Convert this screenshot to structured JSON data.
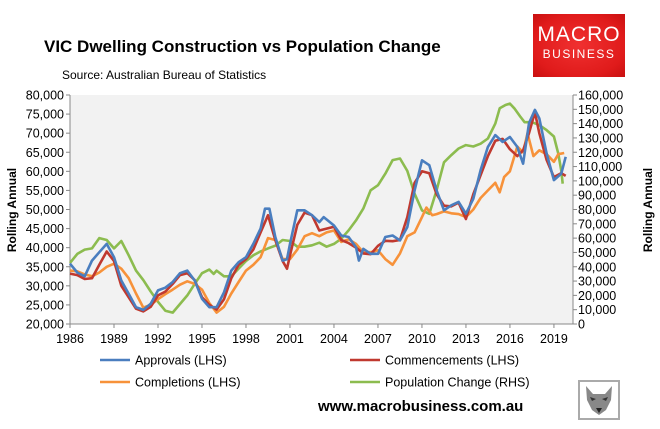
{
  "title": "VIC Dwelling Construction vs Population Change",
  "source": "Source: Australian Bureau of Statistics",
  "logo": {
    "line1": "MACRO",
    "line2": "BUSINESS",
    "color": "#e01b1b"
  },
  "footer": "www.macrobusiness.com.au",
  "chart_data": {
    "type": "line",
    "title": "VIC Dwelling Construction vs Population Change",
    "xlabel": "",
    "ylabel_left": "Rolling Annual",
    "ylabel_right": "Rolling Annual",
    "xlim": [
      1986,
      2020.3
    ],
    "ylim_left": [
      20000,
      80000
    ],
    "ylim_right": [
      0,
      160000
    ],
    "x_ticks": [
      "1986",
      "1989",
      "1992",
      "1995",
      "1998",
      "2001",
      "2004",
      "2007",
      "2010",
      "2013",
      "2016",
      "2019"
    ],
    "y_ticks_left": [
      "20,000",
      "25,000",
      "30,000",
      "35,000",
      "40,000",
      "45,000",
      "50,000",
      "55,000",
      "60,000",
      "65,000",
      "70,000",
      "75,000",
      "80,000"
    ],
    "y_ticks_right": [
      "0",
      "10,000",
      "20,000",
      "30,000",
      "40,000",
      "50,000",
      "60,000",
      "70,000",
      "80,000",
      "90,000",
      "100,000",
      "110,000",
      "120,000",
      "130,000",
      "140,000",
      "150,000",
      "160,000"
    ],
    "grid": false,
    "legend_position": "bottom",
    "series": [
      {
        "name": "Approvals (LHS)",
        "axis": "left",
        "color": "#4a7ebf",
        "x": [
          1986,
          1986.5,
          1987,
          1987.5,
          1988,
          1988.5,
          1989,
          1989.5,
          1990,
          1990.5,
          1991,
          1991.5,
          1992,
          1992.5,
          1993,
          1993.5,
          1994,
          1994.5,
          1995,
          1995.5,
          1996,
          1996.5,
          1997,
          1997.5,
          1998,
          1998.5,
          1999,
          1999.3,
          1999.6,
          2000,
          2000.5,
          2000.8,
          2001,
          2001.5,
          2002,
          2002.5,
          2003,
          2003.3,
          2004,
          2004.5,
          2005,
          2005.5,
          2005.7,
          2006,
          2006.5,
          2007,
          2007.5,
          2008,
          2008.5,
          2009,
          2009.5,
          2010,
          2010.5,
          2011,
          2011.5,
          2012,
          2012.5,
          2013,
          2013.5,
          2014,
          2014.5,
          2015,
          2015.5,
          2016,
          2016.5,
          2016.9,
          2017.3,
          2017.7,
          2018,
          2018.5,
          2019,
          2019.5,
          2019.8
        ],
        "y": [
          35800,
          33500,
          32500,
          36600,
          38800,
          41000,
          37500,
          31400,
          27900,
          24400,
          23700,
          25300,
          28800,
          29500,
          31000,
          33300,
          34000,
          31400,
          26600,
          24400,
          24400,
          28300,
          34000,
          36200,
          37500,
          41000,
          45000,
          50200,
          50200,
          42800,
          36600,
          37000,
          41000,
          49800,
          49800,
          48500,
          46700,
          48000,
          45800,
          43200,
          42800,
          40100,
          36600,
          39700,
          38400,
          38400,
          42800,
          43200,
          41900,
          45400,
          55000,
          62900,
          61600,
          55000,
          49800,
          51100,
          52000,
          48900,
          52800,
          60300,
          66400,
          69500,
          67700,
          69000,
          66400,
          62000,
          72600,
          76100,
          73900,
          64700,
          57700,
          59400,
          63800
        ]
      },
      {
        "name": "Commencements (LHS)",
        "axis": "left",
        "color": "#c0392f",
        "x": [
          1986,
          1986.5,
          1987,
          1987.5,
          1988,
          1988.5,
          1989,
          1989.5,
          1990,
          1990.5,
          1991,
          1991.5,
          1992,
          1992.5,
          1993,
          1993.5,
          1994,
          1994.5,
          1995,
          1995.5,
          1996,
          1996.5,
          1997,
          1997.5,
          1998,
          1998.5,
          1999,
          1999.5,
          2000,
          2000.5,
          2000.8,
          2001,
          2001.5,
          2002,
          2002.5,
          2003,
          2003.5,
          2004,
          2004.5,
          2005,
          2005.5,
          2006,
          2006.5,
          2007,
          2007.5,
          2008,
          2008.5,
          2009,
          2009.5,
          2010,
          2010.5,
          2011,
          2011.5,
          2012,
          2012.5,
          2013,
          2013.5,
          2014,
          2014.5,
          2015,
          2015.5,
          2016,
          2016.5,
          2016.9,
          2017.3,
          2017.7,
          2018,
          2018.5,
          2019,
          2019.5,
          2019.8
        ],
        "y": [
          33200,
          32800,
          31800,
          32000,
          35500,
          39000,
          36500,
          30000,
          27000,
          24000,
          23300,
          24500,
          27500,
          28500,
          30500,
          32800,
          33300,
          31500,
          27000,
          25000,
          23800,
          26500,
          32000,
          35500,
          37000,
          39500,
          44000,
          48500,
          42000,
          36500,
          34500,
          38000,
          46000,
          49200,
          48500,
          44500,
          45000,
          45500,
          42000,
          41200,
          40000,
          38500,
          38300,
          40500,
          41800,
          41700,
          42000,
          48000,
          57000,
          60000,
          59500,
          54000,
          51000,
          50800,
          51800,
          47500,
          54000,
          59000,
          64000,
          68000,
          68500,
          65800,
          64000,
          65500,
          70000,
          75500,
          70000,
          63000,
          58500,
          59500,
          58800
        ]
      },
      {
        "name": "Completions (LHS)",
        "axis": "left",
        "color": "#f7923a",
        "x": [
          1986,
          1986.5,
          1987,
          1987.5,
          1988,
          1988.5,
          1989,
          1989.5,
          1990,
          1990.5,
          1991,
          1991.5,
          1992,
          1992.5,
          1993,
          1993.5,
          1994,
          1994.5,
          1995,
          1995.5,
          1996,
          1996.5,
          1997,
          1997.5,
          1998,
          1998.5,
          1999,
          1999.5,
          2000,
          2000.5,
          2001,
          2001.5,
          2002,
          2002.5,
          2003,
          2003.5,
          2004,
          2004.5,
          2005,
          2005.5,
          2006,
          2006.5,
          2007,
          2007.5,
          2008,
          2008.5,
          2009,
          2009.5,
          2010,
          2010.3,
          2010.7,
          2011,
          2011.5,
          2012,
          2012.5,
          2013,
          2013.5,
          2014,
          2014.5,
          2015,
          2015.3,
          2015.6,
          2016,
          2016.5,
          2016.9,
          2017.2,
          2017.6,
          2018,
          2018.5,
          2019,
          2019.3,
          2019.7
        ],
        "y": [
          34000,
          33800,
          33000,
          32500,
          33500,
          35000,
          35800,
          34500,
          32000,
          28000,
          24300,
          25000,
          26500,
          27800,
          29000,
          30300,
          31200,
          30500,
          29000,
          25500,
          23000,
          24500,
          28000,
          31000,
          34000,
          35500,
          37500,
          42500,
          42000,
          37000,
          37000,
          39500,
          43000,
          43800,
          43000,
          44000,
          44500,
          41500,
          42200,
          41000,
          38800,
          38800,
          39300,
          37000,
          35500,
          38500,
          43000,
          44000,
          48000,
          50500,
          48500,
          48800,
          49500,
          49000,
          48800,
          48000,
          50000,
          53000,
          55000,
          57000,
          54500,
          58500,
          60000,
          66500,
          65000,
          70000,
          64000,
          65500,
          64500,
          62500,
          64500,
          64800
        ]
      },
      {
        "name": "Population Change (RHS)",
        "axis": "right",
        "color": "#8cbc4f",
        "x": [
          1986,
          1986.5,
          1987,
          1987.5,
          1988,
          1988.5,
          1989,
          1989.5,
          1990,
          1990.5,
          1991,
          1991.5,
          1992,
          1992.5,
          1993,
          1993.5,
          1994,
          1994.5,
          1995,
          1995.5,
          1995.8,
          1996,
          1996.5,
          1997,
          1997.5,
          1998,
          1998.5,
          1999,
          1999.5,
          2000,
          2000.5,
          2001,
          2001.5,
          2002,
          2002.5,
          2003,
          2003.5,
          2004,
          2004.5,
          2005,
          2005.5,
          2006,
          2006.5,
          2007,
          2007.5,
          2008,
          2008.5,
          2009,
          2009.5,
          2010,
          2010.5,
          2011,
          2011.5,
          2012,
          2012.5,
          2013,
          2013.5,
          2014,
          2014.5,
          2015,
          2015.3,
          2015.7,
          2016,
          2016.3,
          2016.7,
          2017,
          2017.5,
          2018,
          2018.5,
          2019,
          2019.3,
          2019.5,
          2019.6
        ],
        "y": [
          42700,
          49000,
          52000,
          52800,
          60000,
          58700,
          52800,
          58000,
          48000,
          37300,
          30700,
          22700,
          15500,
          9300,
          8000,
          14000,
          20000,
          28000,
          35500,
          38000,
          35000,
          37300,
          33300,
          33300,
          38700,
          44000,
          48000,
          50700,
          52800,
          54700,
          58700,
          58000,
          54000,
          54000,
          55000,
          56800,
          54000,
          56000,
          59600,
          65400,
          72400,
          80600,
          93400,
          97000,
          105000,
          114500,
          115600,
          107000,
          91000,
          79400,
          77000,
          93400,
          113000,
          118000,
          122600,
          125000,
          124000,
          126000,
          129600,
          140000,
          150700,
          153000,
          154000,
          150700,
          145000,
          141000,
          141000,
          139000,
          135500,
          131000,
          119000,
          107000,
          98000
        ]
      }
    ]
  }
}
